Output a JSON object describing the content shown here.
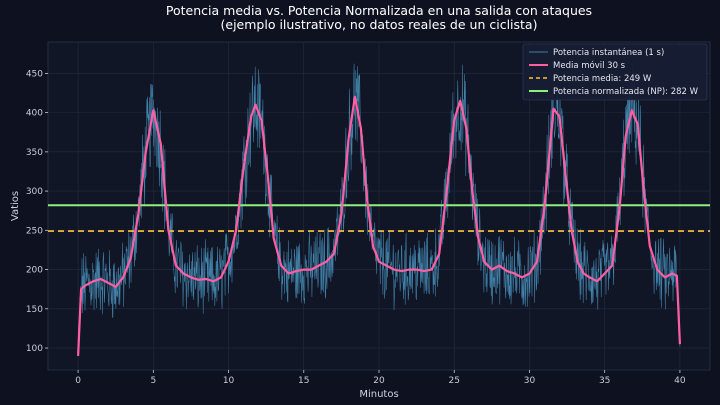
{
  "chart_data": {
    "type": "line",
    "title": "Potencia media vs. Potencia Normalizada en una salida con ataques",
    "subtitle": "(ejemplo ilustrativo, no datos reales de un ciclista)",
    "xlabel": "Minutos",
    "ylabel": "Vatios",
    "xlim": [
      -2,
      42
    ],
    "ylim": [
      72,
      490
    ],
    "xticks": [
      0,
      5,
      10,
      15,
      20,
      25,
      30,
      35,
      40
    ],
    "yticks": [
      100,
      150,
      200,
      250,
      300,
      350,
      400,
      450
    ],
    "grid": true,
    "legend_position": "top-right",
    "attack_peaks_min": [
      5,
      11.8,
      18.4,
      25,
      31.6,
      36.8
    ],
    "series": [
      {
        "name": "Potencia instantánea (1 s)",
        "style": "thin-line",
        "color": "#4f9fcc",
        "range_min": [
          0,
          40
        ],
        "typical_band_w": [
          130,
          470
        ]
      },
      {
        "name": "Media móvil 30 s",
        "style": "line",
        "color": "#ff5fa2",
        "x": [
          0,
          0.2,
          0.5,
          1,
          1.5,
          2,
          2.5,
          3,
          3.5,
          4,
          4.5,
          5,
          5.5,
          6,
          6.5,
          7,
          7.5,
          8,
          8.5,
          9,
          9.5,
          10,
          10.5,
          11,
          11.5,
          11.8,
          12.2,
          12.6,
          13,
          13.5,
          14,
          14.5,
          15,
          15.5,
          16,
          16.5,
          17,
          17.5,
          18,
          18.4,
          18.8,
          19.2,
          19.6,
          20,
          20.5,
          21,
          21.5,
          22,
          22.5,
          23,
          23.5,
          24,
          24.5,
          25,
          25.4,
          25.8,
          26.2,
          26.6,
          27,
          27.5,
          28,
          28.5,
          29,
          29.5,
          30,
          30.5,
          31,
          31.6,
          32,
          32.4,
          32.8,
          33.2,
          33.6,
          34,
          34.5,
          35,
          35.5,
          36,
          36.4,
          36.8,
          37.2,
          37.6,
          38,
          38.5,
          39,
          39.5,
          39.8,
          40
        ],
        "y": [
          90,
          175,
          180,
          185,
          188,
          183,
          178,
          190,
          215,
          270,
          350,
          403,
          360,
          250,
          205,
          195,
          190,
          187,
          188,
          185,
          190,
          210,
          250,
          330,
          395,
          410,
          390,
          320,
          240,
          205,
          195,
          198,
          200,
          200,
          205,
          210,
          220,
          270,
          370,
          420,
          380,
          290,
          230,
          210,
          205,
          200,
          198,
          200,
          200,
          198,
          200,
          220,
          300,
          390,
          415,
          380,
          300,
          240,
          210,
          200,
          205,
          198,
          195,
          190,
          195,
          210,
          280,
          405,
          395,
          320,
          250,
          210,
          195,
          190,
          185,
          195,
          205,
          280,
          370,
          403,
          385,
          300,
          230,
          200,
          190,
          195,
          192,
          105
        ]
      },
      {
        "name": "Potencia media: 249 W",
        "style": "dashed-horizontal",
        "color": "#ffc23a",
        "value": 249
      },
      {
        "name": "Potencia normalizada (NP): 282 W",
        "style": "horizontal",
        "color": "#8ff07a",
        "value": 282
      }
    ]
  }
}
